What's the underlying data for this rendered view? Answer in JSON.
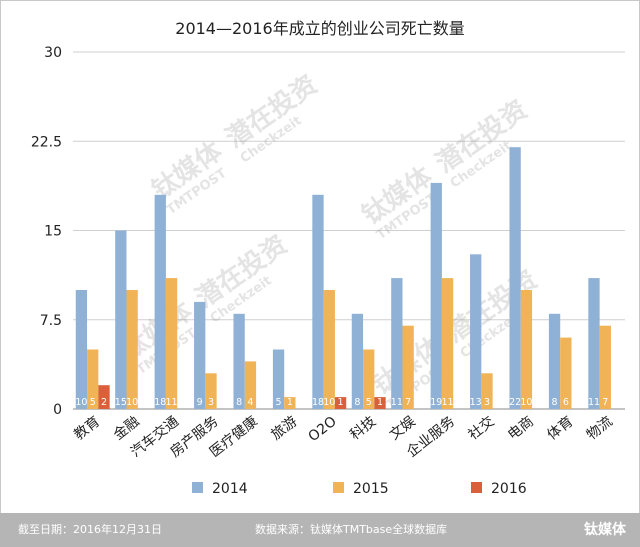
{
  "chart_data": {
    "type": "bar",
    "title": "2014—2016年成立的创业公司死亡数量",
    "xlabel": "",
    "ylabel": "",
    "ylim": [
      0,
      30
    ],
    "yticks": [
      "0",
      "7.5",
      "15",
      "22.5",
      "30"
    ],
    "grid": true,
    "legend_position": "bottom",
    "categories": [
      "教育",
      "金融",
      "汽车交通",
      "房产服务",
      "医疗健康",
      "旅游",
      "O2O",
      "科技",
      "文娱",
      "企业服务",
      "社交",
      "电商",
      "体育",
      "物流"
    ],
    "series": [
      {
        "name": "2014",
        "color": "#8fb1d6",
        "values": [
          10,
          15,
          18,
          9,
          8,
          5,
          18,
          8,
          11,
          19,
          13,
          22,
          8,
          11
        ]
      },
      {
        "name": "2015",
        "color": "#f0b456",
        "values": [
          5,
          10,
          11,
          3,
          4,
          1,
          10,
          5,
          7,
          11,
          3,
          10,
          6,
          7
        ]
      },
      {
        "name": "2016",
        "color": "#d9603b",
        "values": [
          2,
          0,
          0,
          0,
          0,
          0,
          1,
          1,
          0,
          0,
          0,
          0,
          0,
          0
        ]
      }
    ]
  },
  "watermark": {
    "brand": "钛媒体",
    "brand_en": "TMTPOST",
    "partner": "潜在投资",
    "partner_en": "Checkzeit"
  },
  "footer": {
    "date_note": "截至日期：2016年12月31日",
    "source_note": "数据来源：钛媒体TMTbase全球数据库",
    "logo_text": "钛媒体"
  }
}
